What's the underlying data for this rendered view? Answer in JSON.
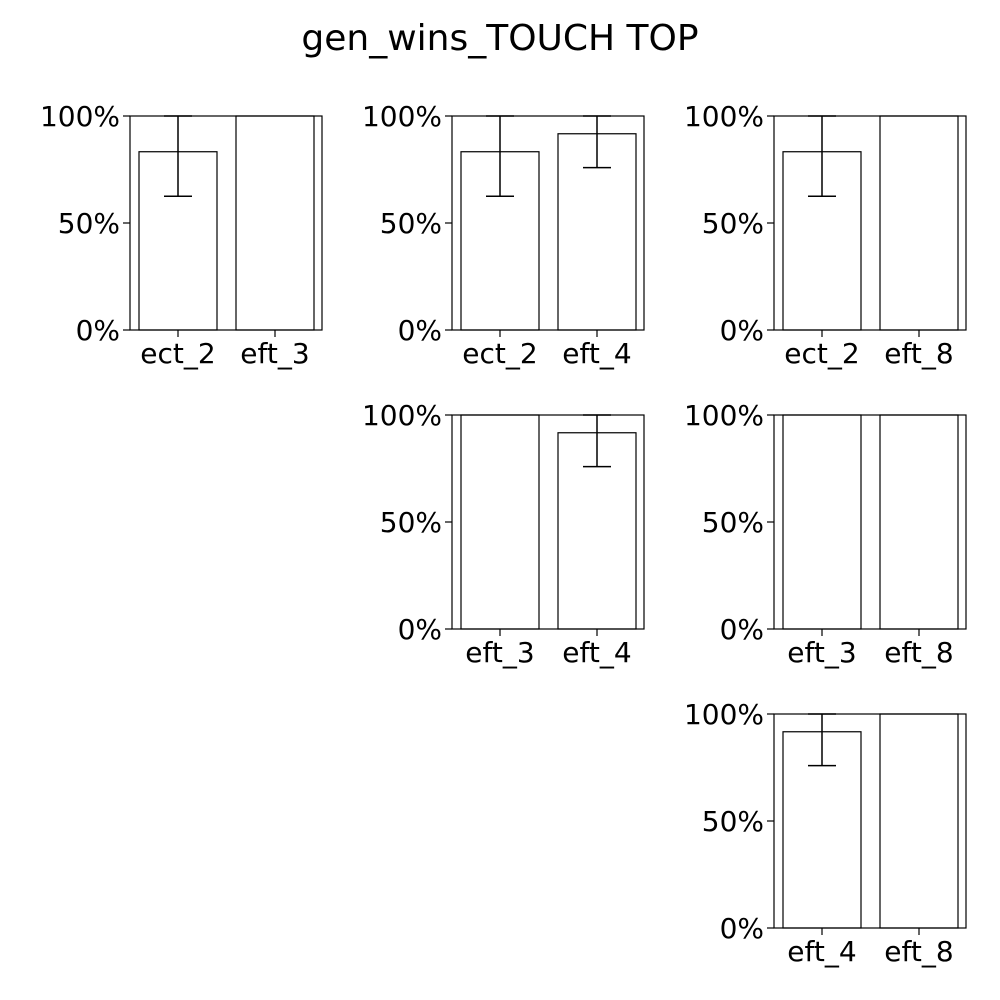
{
  "figure": {
    "title": "gen_wins_TOUCH TOP"
  },
  "chart_data": [
    {
      "type": "bar",
      "categories": [
        "ect_2",
        "eft_3"
      ],
      "values": [
        0.833,
        1.0
      ],
      "error_lower": [
        0.625,
        1.0
      ],
      "error_upper": [
        1.0,
        1.0
      ],
      "ylim": [
        0,
        1
      ],
      "yticks": [
        0,
        0.5,
        1
      ],
      "ytick_labels": [
        "0%",
        "50%",
        "100%"
      ],
      "grid": false,
      "legend": "none",
      "colors": {
        "fill": "#ffffff",
        "edge": "#000000",
        "error": "#000000"
      }
    },
    {
      "type": "bar",
      "categories": [
        "ect_2",
        "eft_4"
      ],
      "values": [
        0.833,
        0.917
      ],
      "error_lower": [
        0.625,
        0.759
      ],
      "error_upper": [
        1.0,
        1.0
      ],
      "ylim": [
        0,
        1
      ],
      "yticks": [
        0,
        0.5,
        1
      ],
      "ytick_labels": [
        "0%",
        "50%",
        "100%"
      ],
      "grid": false,
      "legend": "none",
      "colors": {
        "fill": "#ffffff",
        "edge": "#000000",
        "error": "#000000"
      }
    },
    {
      "type": "bar",
      "categories": [
        "ect_2",
        "eft_8"
      ],
      "values": [
        0.833,
        1.0
      ],
      "error_lower": [
        0.625,
        1.0
      ],
      "error_upper": [
        1.0,
        1.0
      ],
      "ylim": [
        0,
        1
      ],
      "yticks": [
        0,
        0.5,
        1
      ],
      "ytick_labels": [
        "0%",
        "50%",
        "100%"
      ],
      "grid": false,
      "legend": "none",
      "colors": {
        "fill": "#ffffff",
        "edge": "#000000",
        "error": "#000000"
      }
    },
    {
      "type": "bar",
      "categories": [
        "eft_3",
        "eft_4"
      ],
      "values": [
        1.0,
        0.917
      ],
      "error_lower": [
        1.0,
        0.759
      ],
      "error_upper": [
        1.0,
        1.0
      ],
      "ylim": [
        0,
        1
      ],
      "yticks": [
        0,
        0.5,
        1
      ],
      "ytick_labels": [
        "0%",
        "50%",
        "100%"
      ],
      "grid": false,
      "legend": "none",
      "colors": {
        "fill": "#ffffff",
        "edge": "#000000",
        "error": "#000000"
      }
    },
    {
      "type": "bar",
      "categories": [
        "eft_3",
        "eft_8"
      ],
      "values": [
        1.0,
        1.0
      ],
      "error_lower": [
        1.0,
        1.0
      ],
      "error_upper": [
        1.0,
        1.0
      ],
      "ylim": [
        0,
        1
      ],
      "yticks": [
        0,
        0.5,
        1
      ],
      "ytick_labels": [
        "0%",
        "50%",
        "100%"
      ],
      "grid": false,
      "legend": "none",
      "colors": {
        "fill": "#ffffff",
        "edge": "#000000",
        "error": "#000000"
      }
    },
    {
      "type": "bar",
      "categories": [
        "eft_4",
        "eft_8"
      ],
      "values": [
        0.917,
        1.0
      ],
      "error_lower": [
        0.759,
        1.0
      ],
      "error_upper": [
        1.0,
        1.0
      ],
      "ylim": [
        0,
        1
      ],
      "yticks": [
        0,
        0.5,
        1
      ],
      "ytick_labels": [
        "0%",
        "50%",
        "100%"
      ],
      "grid": false,
      "legend": "none",
      "colors": {
        "fill": "#ffffff",
        "edge": "#000000",
        "error": "#000000"
      }
    }
  ]
}
